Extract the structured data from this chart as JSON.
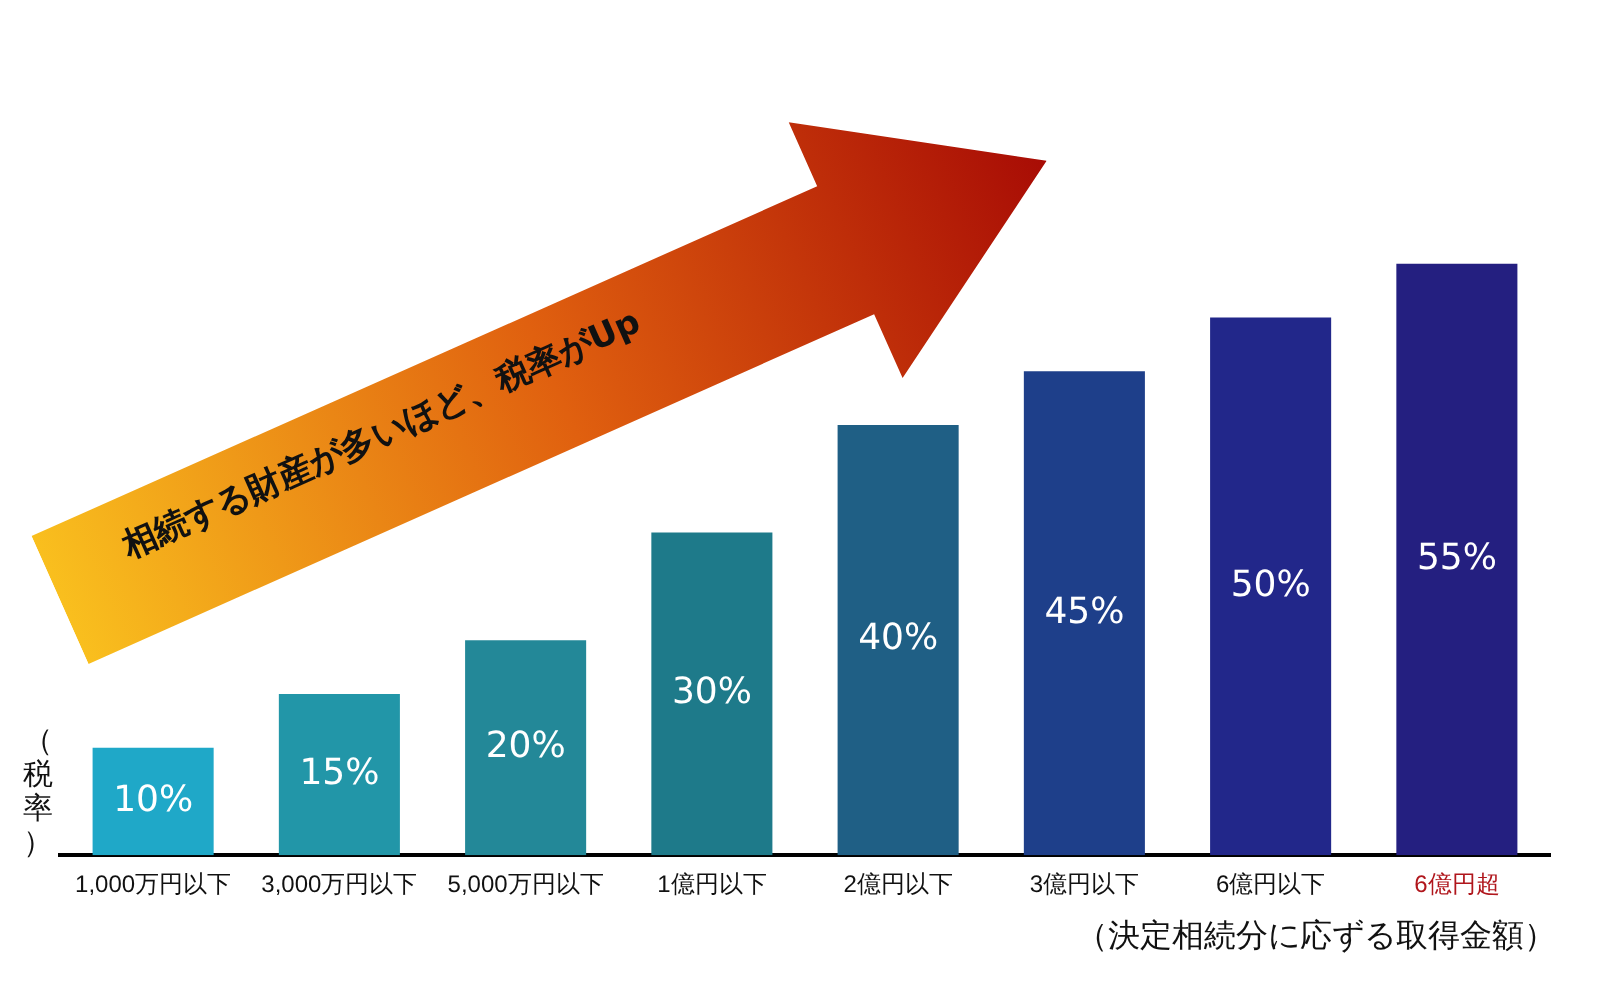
{
  "chart_data": {
    "type": "bar",
    "ylabel": "（税率）",
    "xlabel": "（決定相続分に応ずる取得金額）",
    "categories": [
      "1,000万円以下",
      "3,000万円以下",
      "5,000万円以下",
      "1億円以下",
      "2億円以下",
      "3億円以下",
      "6億円以下",
      "6億円超"
    ],
    "values": [
      10,
      15,
      20,
      30,
      40,
      45,
      50,
      55
    ],
    "colors": [
      "#1fa8c8",
      "#2296a8",
      "#238898",
      "#1e7a8a",
      "#1f5f85",
      "#1e3f8a",
      "#22278a",
      "#241f80"
    ],
    "value_labels": [
      "10%",
      "15%",
      "20%",
      "30%",
      "40%",
      "45%",
      "50%",
      "55%"
    ],
    "annotations": [
      "相続する財産が多いほど、税率がUp"
    ],
    "grid": false,
    "legend": false
  }
}
